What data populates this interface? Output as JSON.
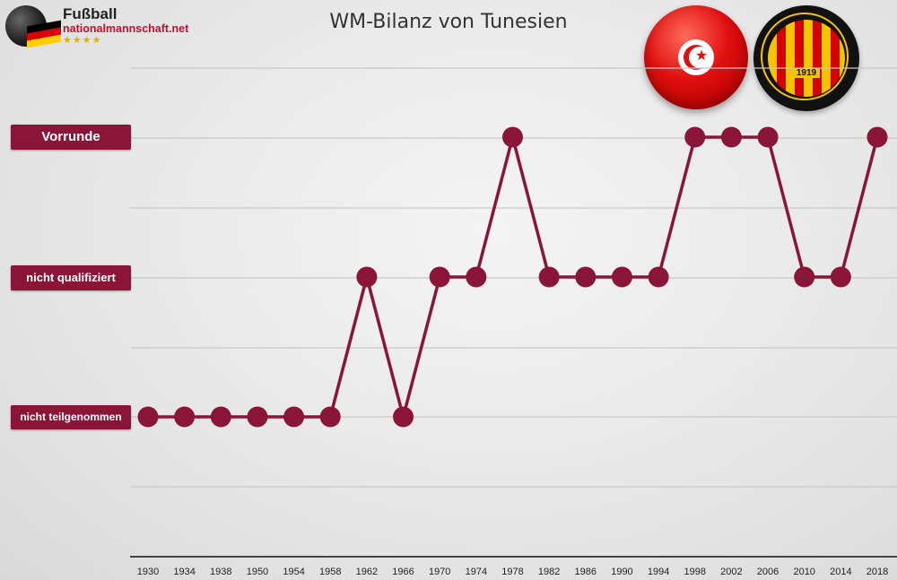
{
  "title": "WM-Bilanz von Tunesien",
  "site": {
    "name_line1": "Fußball",
    "name_line2": "nationalmannschaft.net",
    "stars": "★★★★"
  },
  "club_logo": {
    "year": "1919"
  },
  "colors": {
    "series": "#8b1538",
    "label_bg": "#8b1538",
    "grid": "#c8c8c8",
    "axis": "#444444",
    "flag_red": "#e00f0f"
  },
  "chart_data": {
    "type": "line",
    "title": "WM-Bilanz von Tunesien",
    "xlabel": "",
    "ylabel": "",
    "categories": [
      "1930",
      "1934",
      "1938",
      "1950",
      "1954",
      "1958",
      "1962",
      "1966",
      "1970",
      "1974",
      "1978",
      "1982",
      "1986",
      "1990",
      "1994",
      "1998",
      "2002",
      "2006",
      "2010",
      "2014",
      "2018"
    ],
    "y_levels": [
      "nicht teilgenommen",
      "nicht qualifiziert",
      "Vorrunde"
    ],
    "series": [
      {
        "values": [
          0,
          0,
          0,
          0,
          0,
          0,
          1,
          0,
          1,
          1,
          2,
          1,
          1,
          1,
          1,
          2,
          2,
          2,
          1,
          1,
          2
        ]
      }
    ],
    "grid": true,
    "legend": "none"
  }
}
